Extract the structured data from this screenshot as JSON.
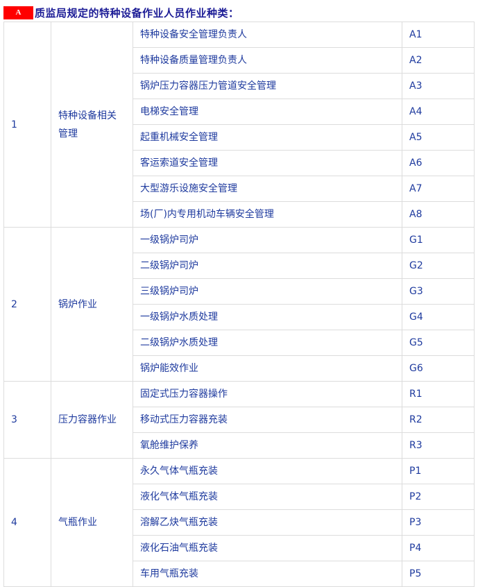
{
  "title": {
    "badge": "A",
    "text": "质监局规定的特种设备作业人员作业种类："
  },
  "groups": [
    {
      "no": "1",
      "name": "特种设备相关管理",
      "items": [
        [
          "特种设备安全管理负责人",
          "A1"
        ],
        [
          "特种设备质量管理负责人",
          "A2"
        ],
        [
          "锅炉压力容器压力管道安全管理",
          "A3"
        ],
        [
          "电梯安全管理",
          "A4"
        ],
        [
          "起重机械安全管理",
          "A5"
        ],
        [
          "客运索道安全管理",
          "A6"
        ],
        [
          "大型游乐设施安全管理",
          "A7"
        ],
        [
          "场(厂)内专用机动车辆安全管理",
          "A8"
        ]
      ]
    },
    {
      "no": "2",
      "name": "锅炉作业",
      "items": [
        [
          "一级锅炉司炉",
          "G1"
        ],
        [
          "二级锅炉司炉",
          "G2"
        ],
        [
          "三级锅炉司炉",
          "G3"
        ],
        [
          "一级锅炉水质处理",
          "G4"
        ],
        [
          "二级锅炉水质处理",
          "G5"
        ],
        [
          "锅炉能效作业",
          "G6"
        ]
      ]
    },
    {
      "no": "3",
      "name": "压力容器作业",
      "items": [
        [
          "固定式压力容器操作",
          "R1"
        ],
        [
          "移动式压力容器充装",
          "R2"
        ],
        [
          "氧舱维护保养",
          "R3"
        ]
      ]
    },
    {
      "no": "4",
      "name": "气瓶作业",
      "items": [
        [
          "永久气体气瓶充装",
          "P1"
        ],
        [
          "液化气体气瓶充装",
          "P2"
        ],
        [
          "溶解乙炔气瓶充装",
          "P3"
        ],
        [
          "液化石油气瓶充装",
          "P4"
        ],
        [
          "车用气瓶充装",
          "P5"
        ]
      ]
    }
  ]
}
